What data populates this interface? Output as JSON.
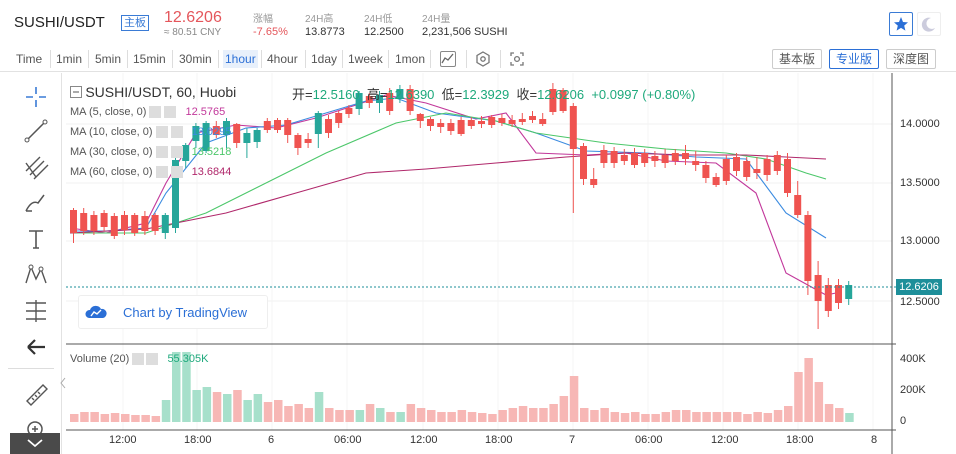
{
  "header": {
    "pair": "SUSHI/USDT",
    "badge": "主板",
    "price": "12.6206",
    "price_cny": "≈ 80.51 CNY",
    "stats": [
      {
        "label": "涨幅",
        "value": "-7.65%"
      },
      {
        "label": "24H高",
        "value": "13.8773"
      },
      {
        "label": "24H低",
        "value": "12.2500"
      },
      {
        "label": "24H量",
        "value": "2,231,506 SUSHI"
      }
    ]
  },
  "toolbar": {
    "intervals": [
      "Time",
      "1min",
      "5min",
      "15min",
      "30min",
      "1hour",
      "4hour",
      "1day",
      "1week",
      "1mon"
    ],
    "active_interval": "1hour",
    "views": [
      "基本版",
      "专业版",
      "深度图"
    ],
    "active_view": "专业版"
  },
  "chart": {
    "title": "SUSHI/USDT, 60, Huobi",
    "ohlc": {
      "open_label": "开=",
      "open": "12.5160",
      "high_label": "高=",
      "high": "12.6390",
      "low_label": "低=",
      "low": "12.3929",
      "close_label": "收=",
      "close": "12.6206",
      "change": "+0.0997 (+0.80%)"
    },
    "indicators": [
      {
        "label": "MA (5, close, 0)",
        "value": "12.5765",
        "color": "#c2389b"
      },
      {
        "label": "MA (10, close, 0)",
        "value": "13.0295",
        "color": "#3b8be0"
      },
      {
        "label": "MA (30, close, 0)",
        "value": "13.5218",
        "color": "#4cc76a"
      },
      {
        "label": "MA (60, close, 0)",
        "value": "13.6844",
        "color": "#b0286b"
      }
    ],
    "watermark": "Chart by TradingView",
    "price_axis": [
      "14.0000",
      "13.5000",
      "13.0000",
      "12.5000"
    ],
    "current_price": "12.6206",
    "volume_label": "Volume (20)",
    "volume_value": "55.305K",
    "volume_axis": [
      "400K",
      "200K",
      "0"
    ],
    "time_axis": [
      "12:00",
      "18:00",
      "6",
      "06:00",
      "12:00",
      "18:00",
      "7",
      "06:00",
      "12:00",
      "18:00",
      "8"
    ],
    "colors": {
      "up": "#26a69a",
      "down": "#ef5350"
    }
  }
}
